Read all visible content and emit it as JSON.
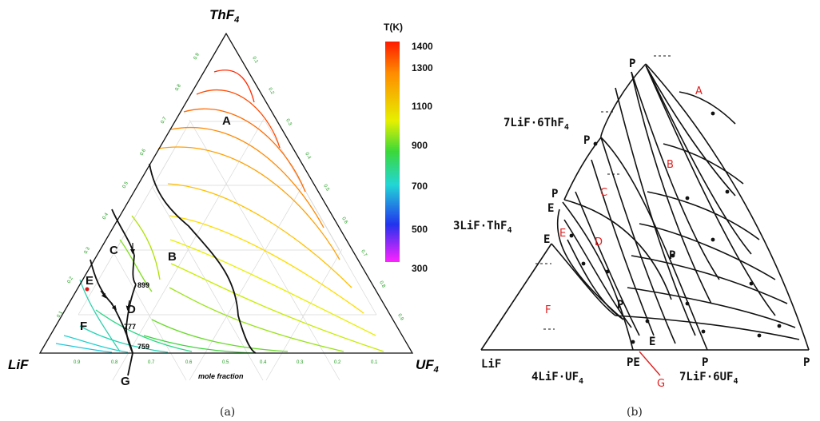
{
  "panel_a": {
    "vertices": {
      "top": "ThF",
      "top_sub": "4",
      "left": "LiF",
      "right": "UF",
      "right_sub": "4"
    },
    "axis_title": "mole fraction",
    "colorbar": {
      "title": "T(K)",
      "ticks": [
        "1400",
        "1300",
        "1100",
        "900",
        "700",
        "500",
        "300"
      ],
      "colors": [
        "#ff0000",
        "#ff8800",
        "#eeee00",
        "#44dd22",
        "#22cccc",
        "#2222ee",
        "#ee00ee"
      ]
    },
    "regions": [
      "A",
      "B",
      "C",
      "D",
      "E",
      "F",
      "G"
    ],
    "temperature_labels": [
      "899",
      "777",
      "759"
    ],
    "axis_ticks": [
      "0.9",
      "0.8",
      "0.7",
      "0.6",
      "0.5",
      "0.4",
      "0.3",
      "0.2",
      "0.1"
    ]
  },
  "panel_b": {
    "compounds": {
      "c1": "7LiF·6ThF",
      "c1_sub": "4",
      "c2": "3LiF·ThF",
      "c2_sub": "4",
      "c3": "4LiF·UF",
      "c3_sub": "4",
      "c4": "7LiF·6UF",
      "c4_sub": "4",
      "lif": "LiF"
    },
    "regions": [
      "A",
      "B",
      "C",
      "D",
      "E",
      "F",
      "G"
    ],
    "point_labels": {
      "P": "P",
      "E": "E",
      "PE": "PE"
    }
  },
  "captions": {
    "a": "(a)",
    "b": "(b)"
  }
}
